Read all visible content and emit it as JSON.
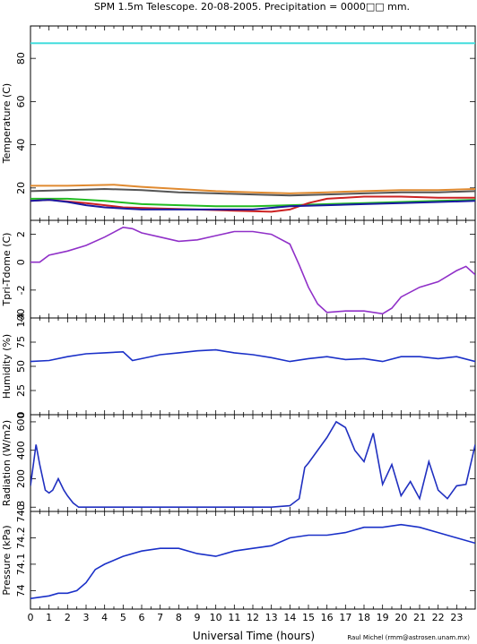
{
  "title": "SPM 1.5m Telescope. 20-08-2005. Precipitation = 0000□□ mm.",
  "credit": "Raul Michel (rmm@astrosen.unam.mx)",
  "chart_data": {
    "type": "line",
    "xlabel": "Universal Time (hours)",
    "xlim": [
      0,
      24
    ],
    "x_ticks": [
      "0",
      "1",
      "2",
      "3",
      "4",
      "5",
      "6",
      "7",
      "8",
      "9",
      "10",
      "11",
      "12",
      "13",
      "14",
      "15",
      "16",
      "17",
      "18",
      "19",
      "20",
      "21",
      "22",
      "23"
    ],
    "panels": [
      {
        "id": "temperature",
        "ylabel": "Temperature (C)",
        "ylim": [
          5,
          95
        ],
        "y_ticks": [
          20,
          40,
          60,
          80
        ],
        "series": [
          {
            "color": "#44dddd",
            "x": [
              0,
              24
            ],
            "y": [
              87,
              87
            ]
          },
          {
            "color": "#e08a30",
            "x": [
              0,
              2,
              4.5,
              6,
              8,
              10,
              12,
              14,
              16,
              18,
              20,
              22,
              24
            ],
            "y": [
              21,
              21,
              21.5,
              20.5,
              19.5,
              18.5,
              18,
              17.5,
              18,
              18.5,
              19,
              19,
              19.5
            ]
          },
          {
            "color": "#555555",
            "x": [
              0,
              2,
              4,
              6,
              8,
              10,
              12,
              14,
              16,
              18,
              20,
              22,
              24
            ],
            "y": [
              18.5,
              19,
              19.5,
              19,
              18,
              17.5,
              17,
              16.5,
              17,
              17.5,
              18,
              18,
              18.5
            ]
          },
          {
            "color": "#22bb22",
            "x": [
              0,
              2,
              4,
              6,
              8,
              10,
              12,
              14,
              16,
              18,
              20,
              22,
              24
            ],
            "y": [
              15,
              15,
              14,
              12.5,
              12,
              11.5,
              11.5,
              12,
              12.5,
              13,
              13.5,
              14,
              14.5
            ]
          },
          {
            "color": "#cc2222",
            "x": [
              0,
              1,
              3,
              5,
              7,
              9,
              11,
              13,
              14,
              15,
              16,
              18,
              20,
              22,
              24
            ],
            "y": [
              14,
              14.5,
              13,
              11,
              10.5,
              10,
              9.5,
              9,
              10,
              13,
              15,
              16,
              16,
              15.5,
              15.5
            ]
          },
          {
            "color": "#1a1aa0",
            "x": [
              0,
              1,
              2,
              3,
              4,
              5,
              6,
              8,
              10,
              12,
              14,
              16,
              18,
              20,
              22,
              24
            ],
            "y": [
              14,
              14.5,
              13.5,
              12,
              11,
              10.5,
              10,
              10,
              10,
              10,
              11.5,
              12,
              12.5,
              13,
              13.5,
              14
            ]
          }
        ]
      },
      {
        "id": "tpri-tdome",
        "ylabel": "Tpri-Tdome (C)",
        "ylim": [
          -4,
          3
        ],
        "y_ticks": [
          -4,
          -2,
          0,
          2
        ],
        "series": [
          {
            "color": "#9030c8",
            "x": [
              0,
              0.5,
              1,
              2,
              3,
              4,
              5,
              5.5,
              6,
              7,
              8,
              9,
              10,
              11,
              12,
              13,
              14,
              14.5,
              15,
              15.5,
              16,
              17,
              18,
              19,
              19.5,
              20,
              21,
              22,
              23,
              23.5,
              24
            ],
            "y": [
              0,
              0,
              0.5,
              0.8,
              1.2,
              1.8,
              2.5,
              2.4,
              2.1,
              1.8,
              1.5,
              1.6,
              1.9,
              2.2,
              2.2,
              2.0,
              1.3,
              -0.2,
              -1.8,
              -3.0,
              -3.6,
              -3.5,
              -3.5,
              -3.7,
              -3.3,
              -2.5,
              -1.8,
              -1.4,
              -0.6,
              -0.3,
              -0.9
            ]
          }
        ]
      },
      {
        "id": "humidity",
        "ylabel": "Humidity (%)",
        "ylim": [
          0,
          100
        ],
        "y_ticks": [
          0,
          25,
          50,
          75,
          100
        ],
        "series": [
          {
            "color": "#1a30c8",
            "x": [
              0,
              1,
              2,
              3,
              4,
              5,
              5.5,
              6,
              7,
              8,
              9,
              10,
              11,
              12,
              13,
              14,
              15,
              16,
              17,
              18,
              19,
              20,
              21,
              22,
              23,
              24
            ],
            "y": [
              55,
              56,
              60,
              63,
              64,
              65,
              56,
              58,
              62,
              64,
              66,
              67,
              64,
              62,
              59,
              55,
              58,
              60,
              57,
              58,
              55,
              60,
              60,
              58,
              60,
              55
            ]
          }
        ]
      },
      {
        "id": "radiation",
        "ylabel": "Radiation (W/m2)",
        "ylim": [
          -30,
          650
        ],
        "y_ticks": [
          0,
          200,
          400,
          600
        ],
        "series": [
          {
            "color": "#2030c0",
            "x": [
              0,
              0.3,
              0.5,
              0.8,
              1.0,
              1.2,
              1.5,
              1.8,
              2.0,
              2.3,
              2.6,
              3,
              6,
              9,
              12,
              13,
              14,
              14.5,
              14.8,
              15,
              16,
              16.5,
              17,
              17.5,
              18,
              18.5,
              19,
              19.5,
              20,
              20.5,
              21,
              21.5,
              22,
              22.5,
              23,
              23.5,
              24
            ],
            "y": [
              150,
              440,
              300,
              120,
              100,
              120,
              200,
              120,
              80,
              30,
              0,
              0,
              0,
              0,
              0,
              0,
              10,
              60,
              280,
              310,
              490,
              600,
              560,
              400,
              320,
              520,
              160,
              300,
              80,
              180,
              60,
              320,
              120,
              60,
              150,
              160,
              440
            ]
          }
        ]
      },
      {
        "id": "pressure",
        "ylabel": "Pressure (kPa)",
        "ylim": [
          73.93,
          74.3
        ],
        "y_ticks": [
          74,
          74.1,
          74.2,
          74.3
        ],
        "y_tick_labels": [
          "74",
          "74.1",
          "74.2",
          "74.3"
        ],
        "series": [
          {
            "color": "#1a30c8",
            "x": [
              0,
              1,
              1.5,
              2,
              2.5,
              3,
              3.5,
              4,
              5,
              6,
              7,
              8,
              9,
              10,
              11,
              12,
              13,
              14,
              15,
              16,
              17,
              18,
              19,
              20,
              21,
              22,
              23,
              24
            ],
            "y": [
              73.97,
              73.98,
              73.99,
              73.99,
              74.0,
              74.03,
              74.08,
              74.1,
              74.13,
              74.15,
              74.16,
              74.16,
              74.14,
              74.13,
              74.15,
              74.16,
              74.17,
              74.2,
              74.21,
              74.21,
              74.22,
              74.24,
              74.24,
              74.25,
              74.24,
              74.22,
              74.2,
              74.18
            ]
          }
        ]
      }
    ]
  }
}
